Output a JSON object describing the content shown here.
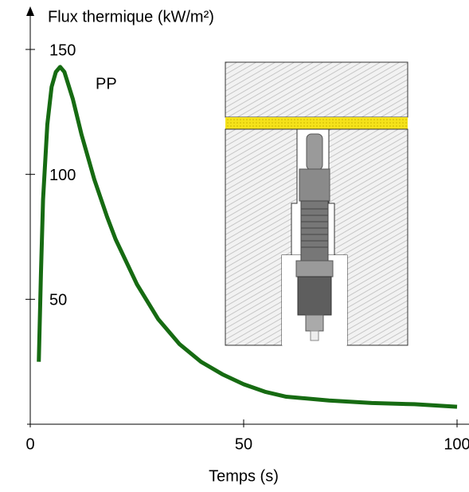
{
  "chart_data": {
    "type": "line",
    "y_label": "Flux thermique (kW/m²)",
    "x_label": "Temps (s)",
    "annotation": "PP",
    "x": [
      2,
      2.5,
      3,
      4,
      5,
      6,
      7,
      8,
      10,
      12,
      15,
      18,
      20,
      25,
      30,
      35,
      40,
      45,
      50,
      55,
      60,
      70,
      80,
      90,
      100
    ],
    "values": [
      25,
      60,
      90,
      120,
      135,
      141,
      143,
      141,
      130,
      116,
      98,
      83,
      74,
      56,
      42,
      32,
      25,
      20,
      16,
      13,
      11,
      9.5,
      8.5,
      8,
      7
    ],
    "color": "#166b12",
    "xlim": [
      0,
      100
    ],
    "ylim": [
      0,
      150
    ],
    "xticks": [
      0,
      50,
      100
    ],
    "yticks": [
      50,
      100,
      150
    ]
  }
}
